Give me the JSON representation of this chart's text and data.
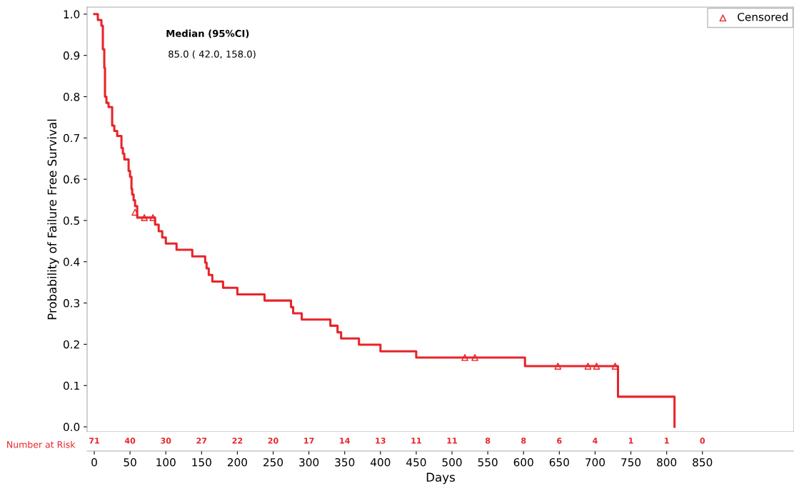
{
  "chart_data": {
    "type": "step",
    "xlabel": "Days",
    "ylabel": "Probability of Failure Free Survival",
    "xlim": [
      -10,
      978
    ],
    "ylim": [
      -0.012,
      1.017
    ],
    "xticks": [
      0,
      50,
      100,
      150,
      200,
      250,
      300,
      350,
      400,
      450,
      500,
      550,
      600,
      650,
      700,
      750,
      800,
      850
    ],
    "yticks": [
      {
        "value": 0,
        "label": "0.0"
      },
      0.1,
      0.2,
      0.3,
      0.4,
      0.5,
      0.6,
      0.7,
      0.8,
      0.9,
      {
        "value": 1,
        "label": "1.0"
      }
    ],
    "grid": false,
    "legend": "top right",
    "line_style": "solid",
    "series": [
      {
        "color": "#e8242a",
        "x": [
          0,
          5,
          10,
          12,
          14,
          15,
          17,
          20,
          25,
          28,
          32,
          38,
          40,
          42,
          48,
          50,
          52,
          53,
          55,
          57,
          60,
          85,
          90,
          95,
          100,
          115,
          137,
          155,
          157,
          160,
          165,
          180,
          200,
          238,
          275,
          278,
          290,
          330,
          340,
          345,
          370,
          400,
          450,
          602,
          732,
          811
        ],
        "values": [
          1.0,
          0.986,
          0.972,
          0.915,
          0.87,
          0.8,
          0.785,
          0.775,
          0.73,
          0.717,
          0.705,
          0.676,
          0.662,
          0.648,
          0.62,
          0.606,
          0.577,
          0.563,
          0.549,
          0.535,
          0.507,
          0.49,
          0.474,
          0.459,
          0.444,
          0.429,
          0.413,
          0.398,
          0.384,
          0.368,
          0.352,
          0.337,
          0.321,
          0.306,
          0.29,
          0.275,
          0.26,
          0.245,
          0.229,
          0.214,
          0.199,
          0.183,
          0.168,
          0.147,
          0.073,
          0.0
        ]
      },
      {
        "type": "scatter",
        "name": "Censored",
        "color": "#e8242a",
        "marker": "triangle",
        "x": [
          57,
          70,
          82,
          518,
          532,
          648,
          690,
          702,
          728
        ],
        "values": [
          0.52,
          0.507,
          0.507,
          0.168,
          0.168,
          0.147,
          0.147,
          0.147,
          0.147
        ]
      }
    ],
    "annotations": [
      "Median (95%CI)",
      "85.0 ( 42.0, 158.0)",
      "Number at Risk",
      "71",
      "40",
      "30",
      "27",
      "22",
      "20",
      "17",
      "14",
      "13",
      "11",
      "11",
      "8",
      "8",
      "6",
      "4",
      "1",
      "1",
      "0"
    ]
  }
}
